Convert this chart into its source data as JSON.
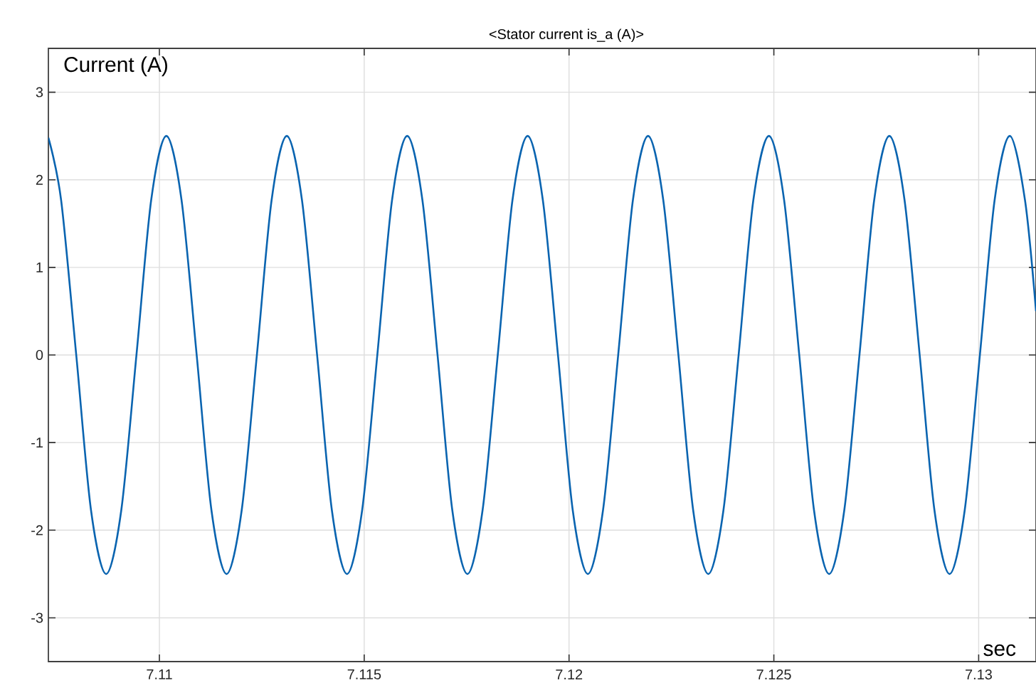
{
  "chart_data": {
    "type": "line",
    "title": "<Stator current is_a (A)>",
    "annotations": [
      "Current (A)",
      "sec"
    ],
    "xlim": [
      7.10729,
      7.1314
    ],
    "ylim": [
      -3.5,
      3.5
    ],
    "xticks": [
      7.11,
      7.115,
      7.12,
      7.125,
      7.13
    ],
    "yticks": [
      -3,
      -2,
      -1,
      0,
      1,
      2,
      3
    ],
    "grid": true,
    "series": [
      {
        "color": "#0a64b0",
        "x": [
          7.10729,
          7.1076,
          7.10797,
          7.10833,
          7.1087,
          7.10907,
          7.10944,
          7.1098,
          7.11017,
          7.11054,
          7.11091,
          7.11127,
          7.11164,
          7.11201,
          7.11238,
          7.11274,
          7.11311,
          7.11348,
          7.11385,
          7.11421,
          7.11458,
          7.11495,
          7.11532,
          7.11568,
          7.11605,
          7.11642,
          7.11679,
          7.11715,
          7.11752,
          7.11789,
          7.11826,
          7.11862,
          7.11899,
          7.11936,
          7.11973,
          7.12009,
          7.12046,
          7.12083,
          7.1212,
          7.12156,
          7.12193,
          7.1223,
          7.12267,
          7.12303,
          7.1234,
          7.12377,
          7.12414,
          7.1245,
          7.12488,
          7.12525,
          7.12562,
          7.12598,
          7.12635,
          7.12672,
          7.12709,
          7.12745,
          7.12782,
          7.12819,
          7.12856,
          7.12892,
          7.12929,
          7.12966,
          7.13003,
          7.13039,
          7.13076,
          7.13113,
          7.1314
        ],
        "values": [
          2.48,
          1.77,
          0,
          -1.77,
          -2.5,
          -1.77,
          0,
          1.77,
          2.5,
          1.77,
          0,
          -1.77,
          -2.5,
          -1.77,
          0,
          1.77,
          2.5,
          1.77,
          0,
          -1.77,
          -2.5,
          -1.77,
          0,
          1.77,
          2.5,
          1.77,
          0,
          -1.77,
          -2.5,
          -1.77,
          0,
          1.77,
          2.5,
          1.77,
          0,
          -1.77,
          -2.5,
          -1.77,
          0,
          1.77,
          2.5,
          1.77,
          0,
          -1.77,
          -2.5,
          -1.77,
          0,
          1.77,
          2.5,
          1.77,
          0,
          -1.77,
          -2.5,
          -1.77,
          0,
          1.77,
          2.5,
          1.77,
          0,
          -1.77,
          -2.5,
          -1.77,
          0,
          1.77,
          2.5,
          1.77,
          0.5
        ]
      }
    ]
  }
}
